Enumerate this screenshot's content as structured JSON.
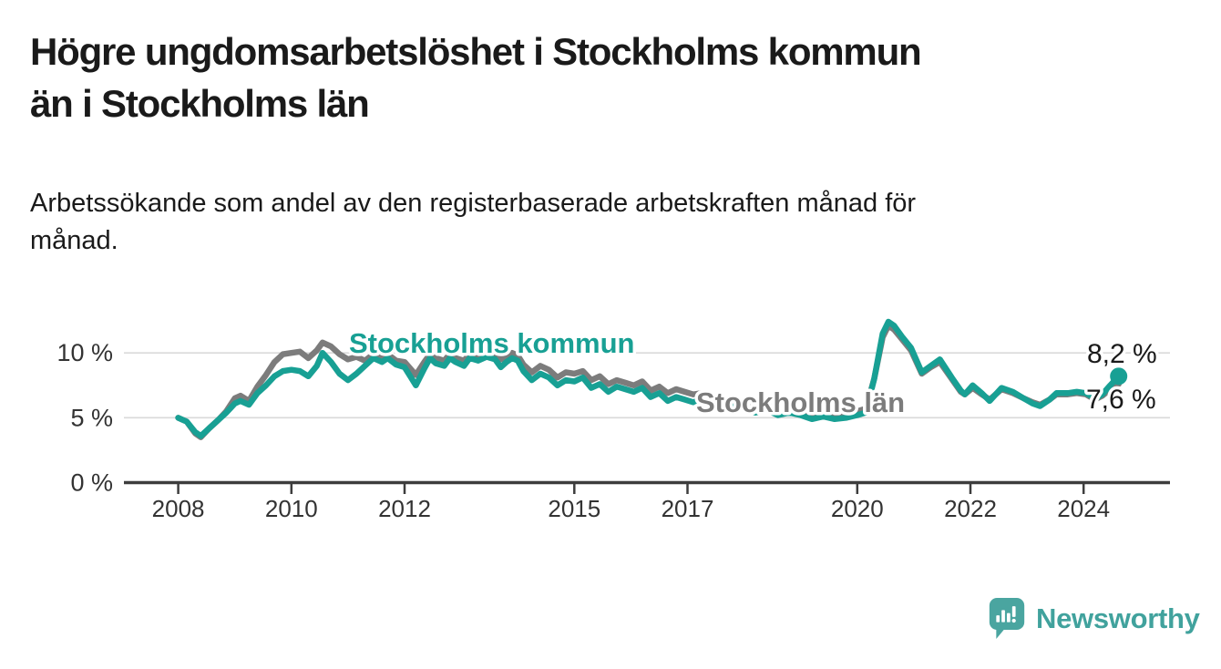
{
  "header": {
    "title_line1": "Högre ungdomsarbetslöshet i Stockholms kommun",
    "title_line2": "än i Stockholms län",
    "subtitle_line1": "Arbetssökande som andel av den registerbaserade arbetskraften månad för",
    "subtitle_line2": "månad."
  },
  "footer": {
    "brand": "Newsworthy",
    "logo_icon": "newsworthy-pin-barchart-icon",
    "brand_color": "#41a29d"
  },
  "colors": {
    "kommun_teal": "#18a094",
    "lan_gray": "#7c7c7c",
    "axis": "#3d3d3d",
    "grid": "#d9d9d9",
    "text": "#1a1a1a"
  },
  "chart_data": {
    "type": "line",
    "title": "Högre ungdomsarbetslöshet i Stockholms kommun än i Stockholms län",
    "subtitle": "Arbetssökande som andel av den registerbaserade arbetskraften månad för månad.",
    "unit": "%",
    "grid": true,
    "legend_position": "inline-annotations",
    "x_axis": {
      "ticks": [
        2008,
        2010,
        2012,
        2015,
        2017,
        2020,
        2022,
        2024
      ],
      "range": [
        2007.8,
        2025.5
      ]
    },
    "y_axis": {
      "ticks": [
        {
          "value": 0,
          "label": "0 %"
        },
        {
          "value": 5,
          "label": "5 %"
        },
        {
          "value": 10,
          "label": "10 %"
        }
      ],
      "range": [
        0,
        13.5
      ]
    },
    "series": [
      {
        "name": "Stockholms län",
        "color": "#7c7c7c",
        "annotation_label": "Stockholms län",
        "end_label": "7,6 %",
        "end_value": 7.6,
        "end_dot": false,
        "points": [
          [
            2008.0,
            5.0
          ],
          [
            2008.15,
            4.7
          ],
          [
            2008.3,
            3.8
          ],
          [
            2008.4,
            3.5
          ],
          [
            2008.55,
            4.2
          ],
          [
            2008.7,
            4.8
          ],
          [
            2008.85,
            5.5
          ],
          [
            2009.0,
            6.5
          ],
          [
            2009.1,
            6.7
          ],
          [
            2009.25,
            6.3
          ],
          [
            2009.4,
            7.4
          ],
          [
            2009.55,
            8.3
          ],
          [
            2009.7,
            9.3
          ],
          [
            2009.85,
            9.9
          ],
          [
            2010.0,
            10.0
          ],
          [
            2010.15,
            10.1
          ],
          [
            2010.3,
            9.6
          ],
          [
            2010.45,
            10.2
          ],
          [
            2010.55,
            10.8
          ],
          [
            2010.7,
            10.5
          ],
          [
            2010.85,
            9.9
          ],
          [
            2011.0,
            9.5
          ],
          [
            2011.15,
            9.7
          ],
          [
            2011.3,
            9.4
          ],
          [
            2011.45,
            9.9
          ],
          [
            2011.6,
            9.6
          ],
          [
            2011.7,
            9.9
          ],
          [
            2011.85,
            9.4
          ],
          [
            2012.0,
            9.3
          ],
          [
            2012.1,
            8.8
          ],
          [
            2012.2,
            8.3
          ],
          [
            2012.35,
            9.3
          ],
          [
            2012.45,
            9.9
          ],
          [
            2012.55,
            9.6
          ],
          [
            2012.7,
            9.4
          ],
          [
            2012.8,
            9.9
          ],
          [
            2012.9,
            9.6
          ],
          [
            2013.05,
            9.4
          ],
          [
            2013.15,
            9.9
          ],
          [
            2013.3,
            9.7
          ],
          [
            2013.45,
            10.2
          ],
          [
            2013.6,
            10.0
          ],
          [
            2013.7,
            9.5
          ],
          [
            2013.8,
            9.8
          ],
          [
            2013.9,
            10.0
          ],
          [
            2014.0,
            9.8
          ],
          [
            2014.1,
            9.1
          ],
          [
            2014.25,
            8.5
          ],
          [
            2014.4,
            9.0
          ],
          [
            2014.55,
            8.7
          ],
          [
            2014.7,
            8.1
          ],
          [
            2014.85,
            8.5
          ],
          [
            2015.0,
            8.4
          ],
          [
            2015.15,
            8.6
          ],
          [
            2015.3,
            7.9
          ],
          [
            2015.45,
            8.2
          ],
          [
            2015.6,
            7.6
          ],
          [
            2015.75,
            7.9
          ],
          [
            2015.9,
            7.7
          ],
          [
            2016.05,
            7.5
          ],
          [
            2016.2,
            7.8
          ],
          [
            2016.35,
            7.1
          ],
          [
            2016.5,
            7.4
          ],
          [
            2016.65,
            6.9
          ],
          [
            2016.8,
            7.2
          ],
          [
            2016.95,
            7.0
          ],
          [
            2017.1,
            6.8
          ],
          [
            2017.25,
            6.9
          ],
          [
            2017.4,
            6.4
          ],
          [
            2017.55,
            6.6
          ],
          [
            2017.7,
            6.2
          ],
          [
            2017.85,
            6.4
          ],
          [
            2018.0,
            6.1
          ],
          [
            2018.2,
            5.8
          ],
          [
            2018.4,
            6.0
          ],
          [
            2018.6,
            5.6
          ],
          [
            2018.8,
            5.8
          ],
          [
            2019.0,
            5.6
          ],
          [
            2019.2,
            5.3
          ],
          [
            2019.4,
            5.4
          ],
          [
            2019.6,
            5.2
          ],
          [
            2019.8,
            5.3
          ],
          [
            2020.0,
            5.5
          ],
          [
            2020.15,
            5.7
          ],
          [
            2020.3,
            8.0
          ],
          [
            2020.45,
            11.2
          ],
          [
            2020.55,
            12.1
          ],
          [
            2020.65,
            11.8
          ],
          [
            2020.8,
            11.0
          ],
          [
            2020.95,
            10.2
          ],
          [
            2021.14,
            8.4
          ],
          [
            2021.3,
            8.9
          ],
          [
            2021.46,
            9.3
          ],
          [
            2021.67,
            8.0
          ],
          [
            2021.83,
            7.0
          ],
          [
            2021.9,
            6.8
          ],
          [
            2022.04,
            7.3
          ],
          [
            2022.2,
            6.8
          ],
          [
            2022.34,
            6.4
          ],
          [
            2022.55,
            7.2
          ],
          [
            2022.75,
            6.9
          ],
          [
            2022.94,
            6.5
          ],
          [
            2023.1,
            6.2
          ],
          [
            2023.23,
            6.0
          ],
          [
            2023.4,
            6.4
          ],
          [
            2023.52,
            6.8
          ],
          [
            2023.72,
            6.8
          ],
          [
            2023.88,
            6.9
          ],
          [
            2024.04,
            6.8
          ],
          [
            2024.2,
            6.4
          ],
          [
            2024.33,
            6.7
          ],
          [
            2024.47,
            7.2
          ],
          [
            2024.62,
            7.6
          ]
        ]
      },
      {
        "name": "Stockholms kommun",
        "color": "#18a094",
        "annotation_label": "Stockholms kommun",
        "end_label": "8,2 %",
        "end_value": 8.2,
        "end_dot": true,
        "points": [
          [
            2008.0,
            5.0
          ],
          [
            2008.15,
            4.7
          ],
          [
            2008.3,
            3.9
          ],
          [
            2008.4,
            3.6
          ],
          [
            2008.55,
            4.2
          ],
          [
            2008.7,
            4.8
          ],
          [
            2008.85,
            5.4
          ],
          [
            2009.0,
            6.1
          ],
          [
            2009.1,
            6.3
          ],
          [
            2009.25,
            6.0
          ],
          [
            2009.4,
            6.9
          ],
          [
            2009.55,
            7.5
          ],
          [
            2009.7,
            8.2
          ],
          [
            2009.85,
            8.6
          ],
          [
            2010.0,
            8.7
          ],
          [
            2010.15,
            8.6
          ],
          [
            2010.3,
            8.2
          ],
          [
            2010.45,
            9.0
          ],
          [
            2010.55,
            10.0
          ],
          [
            2010.7,
            9.3
          ],
          [
            2010.85,
            8.4
          ],
          [
            2011.0,
            7.9
          ],
          [
            2011.15,
            8.4
          ],
          [
            2011.3,
            9.0
          ],
          [
            2011.45,
            9.6
          ],
          [
            2011.6,
            9.3
          ],
          [
            2011.7,
            9.6
          ],
          [
            2011.85,
            9.1
          ],
          [
            2012.0,
            8.9
          ],
          [
            2012.1,
            8.2
          ],
          [
            2012.2,
            7.5
          ],
          [
            2012.35,
            8.8
          ],
          [
            2012.45,
            9.6
          ],
          [
            2012.55,
            9.2
          ],
          [
            2012.7,
            9.0
          ],
          [
            2012.8,
            9.6
          ],
          [
            2012.9,
            9.3
          ],
          [
            2013.05,
            9.0
          ],
          [
            2013.15,
            9.6
          ],
          [
            2013.3,
            9.4
          ],
          [
            2013.45,
            9.7
          ],
          [
            2013.6,
            9.5
          ],
          [
            2013.7,
            8.9
          ],
          [
            2013.8,
            9.3
          ],
          [
            2013.9,
            9.6
          ],
          [
            2014.0,
            9.4
          ],
          [
            2014.1,
            8.6
          ],
          [
            2014.25,
            7.9
          ],
          [
            2014.4,
            8.4
          ],
          [
            2014.55,
            8.1
          ],
          [
            2014.7,
            7.5
          ],
          [
            2014.85,
            7.9
          ],
          [
            2015.0,
            7.8
          ],
          [
            2015.15,
            8.1
          ],
          [
            2015.3,
            7.3
          ],
          [
            2015.45,
            7.6
          ],
          [
            2015.6,
            7.0
          ],
          [
            2015.75,
            7.4
          ],
          [
            2015.9,
            7.2
          ],
          [
            2016.05,
            7.0
          ],
          [
            2016.2,
            7.3
          ],
          [
            2016.35,
            6.6
          ],
          [
            2016.5,
            6.9
          ],
          [
            2016.65,
            6.3
          ],
          [
            2016.8,
            6.6
          ],
          [
            2016.95,
            6.4
          ],
          [
            2017.1,
            6.2
          ],
          [
            2017.25,
            6.4
          ],
          [
            2017.4,
            5.9
          ],
          [
            2017.55,
            6.1
          ],
          [
            2017.7,
            5.7
          ],
          [
            2017.85,
            5.9
          ],
          [
            2018.0,
            5.7
          ],
          [
            2018.2,
            5.4
          ],
          [
            2018.4,
            5.6
          ],
          [
            2018.6,
            5.2
          ],
          [
            2018.8,
            5.4
          ],
          [
            2019.0,
            5.2
          ],
          [
            2019.2,
            4.9
          ],
          [
            2019.4,
            5.1
          ],
          [
            2019.6,
            4.9
          ],
          [
            2019.8,
            5.0
          ],
          [
            2020.0,
            5.2
          ],
          [
            2020.15,
            5.4
          ],
          [
            2020.3,
            8.0
          ],
          [
            2020.45,
            11.5
          ],
          [
            2020.55,
            12.4
          ],
          [
            2020.65,
            12.1
          ],
          [
            2020.8,
            11.2
          ],
          [
            2020.95,
            10.4
          ],
          [
            2021.14,
            8.5
          ],
          [
            2021.3,
            9.0
          ],
          [
            2021.46,
            9.5
          ],
          [
            2021.67,
            8.1
          ],
          [
            2021.83,
            7.1
          ],
          [
            2021.9,
            6.8
          ],
          [
            2022.04,
            7.5
          ],
          [
            2022.2,
            6.9
          ],
          [
            2022.34,
            6.3
          ],
          [
            2022.55,
            7.3
          ],
          [
            2022.75,
            7.0
          ],
          [
            2022.94,
            6.5
          ],
          [
            2023.1,
            6.1
          ],
          [
            2023.23,
            5.9
          ],
          [
            2023.4,
            6.4
          ],
          [
            2023.52,
            6.9
          ],
          [
            2023.72,
            6.9
          ],
          [
            2023.88,
            7.0
          ],
          [
            2024.04,
            6.9
          ],
          [
            2024.2,
            6.5
          ],
          [
            2024.33,
            6.8
          ],
          [
            2024.47,
            7.5
          ],
          [
            2024.62,
            8.2
          ]
        ]
      }
    ]
  }
}
